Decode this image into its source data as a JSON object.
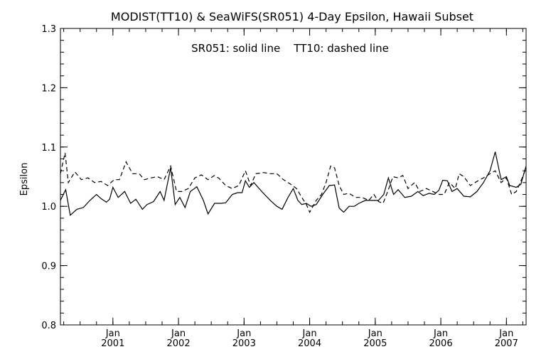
{
  "chart_data": {
    "type": "line",
    "title": "MODIST(TT10) & SeaWiFS(SR051) 4-Day Epsilon, Hawaii Subset",
    "annotation": "SR051: solid line    TT10: dashed line",
    "xlabel": "",
    "ylabel": "Epsilon",
    "xlim": [
      2000.2,
      2007.3
    ],
    "ylim": [
      0.8,
      1.3
    ],
    "yticks": [
      0.8,
      0.9,
      1.0,
      1.1,
      1.2,
      1.3
    ],
    "ytick_labels": [
      "0.8",
      "0.9",
      "1.0",
      "1.1",
      "1.2",
      "1.3"
    ],
    "xticks": [
      {
        "value": 2001,
        "month": "Jan",
        "year": "2001"
      },
      {
        "value": 2002,
        "month": "Jan",
        "year": "2002"
      },
      {
        "value": 2003,
        "month": "Jan",
        "year": "2003"
      },
      {
        "value": 2004,
        "month": "Jan",
        "year": "2004"
      },
      {
        "value": 2005,
        "month": "Jan",
        "year": "2005"
      },
      {
        "value": 2006,
        "month": "Jan",
        "year": "2006"
      },
      {
        "value": 2007,
        "month": "Jan",
        "year": "2007"
      }
    ],
    "grid": false,
    "series": [
      {
        "name": "SR051",
        "line_style": "solid",
        "color": "#000000",
        "points": [
          [
            2000.2,
            1.01
          ],
          [
            2000.28,
            1.028
          ],
          [
            2000.35,
            0.985
          ],
          [
            2000.45,
            0.995
          ],
          [
            2000.55,
            0.998
          ],
          [
            2000.65,
            1.01
          ],
          [
            2000.75,
            1.02
          ],
          [
            2000.82,
            1.013
          ],
          [
            2000.9,
            1.007
          ],
          [
            2000.95,
            1.012
          ],
          [
            2001.0,
            1.032
          ],
          [
            2001.08,
            1.015
          ],
          [
            2001.18,
            1.025
          ],
          [
            2001.27,
            1.005
          ],
          [
            2001.35,
            1.012
          ],
          [
            2001.45,
            0.995
          ],
          [
            2001.52,
            1.003
          ],
          [
            2001.62,
            1.008
          ],
          [
            2001.72,
            1.025
          ],
          [
            2001.78,
            1.01
          ],
          [
            2001.88,
            1.065
          ],
          [
            2001.95,
            1.003
          ],
          [
            2002.02,
            1.015
          ],
          [
            2002.1,
            0.998
          ],
          [
            2002.18,
            1.025
          ],
          [
            2002.28,
            1.033
          ],
          [
            2002.38,
            1.01
          ],
          [
            2002.45,
            0.987
          ],
          [
            2002.55,
            1.005
          ],
          [
            2002.65,
            1.005
          ],
          [
            2002.72,
            1.006
          ],
          [
            2002.82,
            1.02
          ],
          [
            2002.9,
            1.023
          ],
          [
            2002.97,
            1.023
          ],
          [
            2003.02,
            1.043
          ],
          [
            2003.08,
            1.032
          ],
          [
            2003.15,
            1.04
          ],
          [
            2003.27,
            1.025
          ],
          [
            2003.4,
            1.01
          ],
          [
            2003.5,
            1.0
          ],
          [
            2003.58,
            0.995
          ],
          [
            2003.67,
            1.015
          ],
          [
            2003.75,
            1.03
          ],
          [
            2003.82,
            1.01
          ],
          [
            2003.88,
            1.003
          ],
          [
            2003.95,
            1.005
          ],
          [
            2004.02,
            1.0
          ],
          [
            2004.1,
            1.003
          ],
          [
            2004.2,
            1.02
          ],
          [
            2004.3,
            1.035
          ],
          [
            2004.38,
            1.036
          ],
          [
            2004.45,
            0.997
          ],
          [
            2004.52,
            0.99
          ],
          [
            2004.6,
            1.0
          ],
          [
            2004.68,
            1.0
          ],
          [
            2004.75,
            1.005
          ],
          [
            2004.85,
            1.01
          ],
          [
            2004.95,
            1.01
          ],
          [
            2005.05,
            1.01
          ],
          [
            2005.13,
            1.02
          ],
          [
            2005.2,
            1.048
          ],
          [
            2005.28,
            1.02
          ],
          [
            2005.35,
            1.028
          ],
          [
            2005.45,
            1.015
          ],
          [
            2005.55,
            1.017
          ],
          [
            2005.65,
            1.025
          ],
          [
            2005.73,
            1.018
          ],
          [
            2005.82,
            1.022
          ],
          [
            2005.9,
            1.02
          ],
          [
            2005.97,
            1.027
          ],
          [
            2006.03,
            1.044
          ],
          [
            2006.1,
            1.043
          ],
          [
            2006.17,
            1.025
          ],
          [
            2006.25,
            1.03
          ],
          [
            2006.35,
            1.017
          ],
          [
            2006.45,
            1.016
          ],
          [
            2006.55,
            1.025
          ],
          [
            2006.65,
            1.04
          ],
          [
            2006.75,
            1.06
          ],
          [
            2006.83,
            1.092
          ],
          [
            2006.92,
            1.045
          ],
          [
            2007.0,
            1.05
          ],
          [
            2007.05,
            1.035
          ],
          [
            2007.15,
            1.032
          ],
          [
            2007.22,
            1.037
          ],
          [
            2007.3,
            1.068
          ]
        ]
      },
      {
        "name": "TT10",
        "line_style": "dashed",
        "color": "#000000",
        "points": [
          [
            2000.2,
            1.055
          ],
          [
            2000.27,
            1.09
          ],
          [
            2000.32,
            1.04
          ],
          [
            2000.42,
            1.058
          ],
          [
            2000.52,
            1.045
          ],
          [
            2000.62,
            1.048
          ],
          [
            2000.72,
            1.04
          ],
          [
            2000.82,
            1.042
          ],
          [
            2000.92,
            1.035
          ],
          [
            2001.02,
            1.045
          ],
          [
            2001.1,
            1.045
          ],
          [
            2001.2,
            1.075
          ],
          [
            2001.3,
            1.055
          ],
          [
            2001.4,
            1.055
          ],
          [
            2001.48,
            1.045
          ],
          [
            2001.58,
            1.048
          ],
          [
            2001.68,
            1.05
          ],
          [
            2001.78,
            1.045
          ],
          [
            2001.88,
            1.068
          ],
          [
            2001.97,
            1.025
          ],
          [
            2002.05,
            1.025
          ],
          [
            2002.15,
            1.03
          ],
          [
            2002.25,
            1.048
          ],
          [
            2002.35,
            1.053
          ],
          [
            2002.45,
            1.045
          ],
          [
            2002.55,
            1.052
          ],
          [
            2002.62,
            1.047
          ],
          [
            2002.72,
            1.035
          ],
          [
            2002.82,
            1.03
          ],
          [
            2002.92,
            1.035
          ],
          [
            2003.02,
            1.06
          ],
          [
            2003.1,
            1.035
          ],
          [
            2003.18,
            1.055
          ],
          [
            2003.3,
            1.057
          ],
          [
            2003.4,
            1.055
          ],
          [
            2003.5,
            1.055
          ],
          [
            2003.6,
            1.045
          ],
          [
            2003.7,
            1.038
          ],
          [
            2003.8,
            1.03
          ],
          [
            2003.88,
            1.015
          ],
          [
            2003.95,
            1.003
          ],
          [
            2004.0,
            0.99
          ],
          [
            2004.1,
            1.01
          ],
          [
            2004.18,
            1.02
          ],
          [
            2004.25,
            1.04
          ],
          [
            2004.32,
            1.068
          ],
          [
            2004.38,
            1.065
          ],
          [
            2004.45,
            1.035
          ],
          [
            2004.52,
            1.02
          ],
          [
            2004.6,
            1.022
          ],
          [
            2004.7,
            1.015
          ],
          [
            2004.8,
            1.015
          ],
          [
            2004.9,
            1.01
          ],
          [
            2004.98,
            1.02
          ],
          [
            2005.05,
            1.008
          ],
          [
            2005.12,
            1.005
          ],
          [
            2005.2,
            1.028
          ],
          [
            2005.27,
            1.05
          ],
          [
            2005.35,
            1.048
          ],
          [
            2005.42,
            1.052
          ],
          [
            2005.5,
            1.03
          ],
          [
            2005.6,
            1.04
          ],
          [
            2005.68,
            1.025
          ],
          [
            2005.78,
            1.03
          ],
          [
            2005.88,
            1.025
          ],
          [
            2005.97,
            1.02
          ],
          [
            2006.05,
            1.02
          ],
          [
            2006.13,
            1.04
          ],
          [
            2006.22,
            1.03
          ],
          [
            2006.28,
            1.055
          ],
          [
            2006.35,
            1.05
          ],
          [
            2006.45,
            1.035
          ],
          [
            2006.55,
            1.042
          ],
          [
            2006.65,
            1.048
          ],
          [
            2006.75,
            1.055
          ],
          [
            2006.83,
            1.06
          ],
          [
            2006.92,
            1.04
          ],
          [
            2007.0,
            1.048
          ],
          [
            2007.08,
            1.02
          ],
          [
            2007.15,
            1.025
          ],
          [
            2007.23,
            1.045
          ],
          [
            2007.3,
            1.065
          ]
        ]
      }
    ]
  }
}
